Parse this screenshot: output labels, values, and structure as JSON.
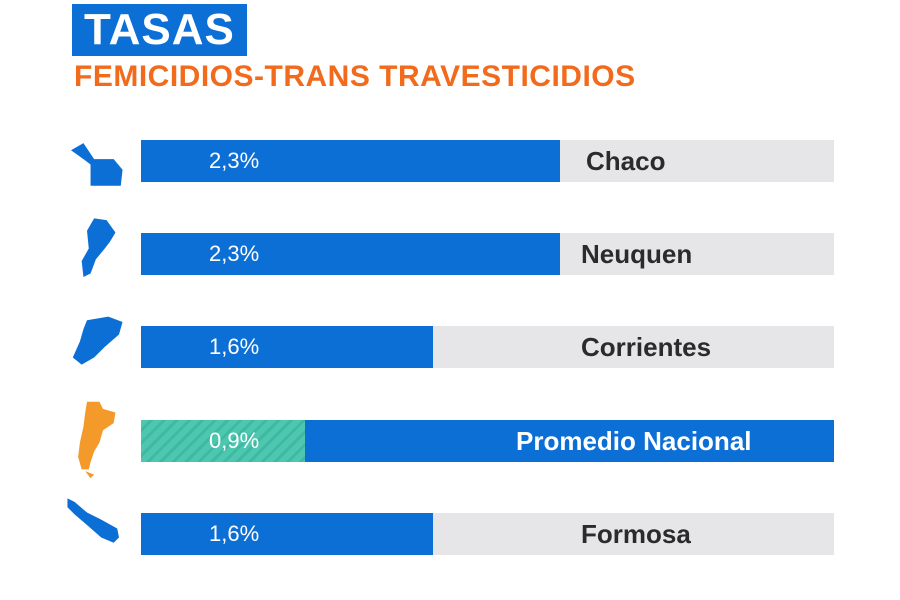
{
  "title": "TASAS",
  "subtitle": "FEMICIDIOS-TRANS TRAVESTICIDIOS",
  "colors": {
    "title_bg": "#0b6fd6",
    "subtitle": "#f26a1b",
    "bar": "#0b6fd6",
    "track": "#e6e6e8",
    "national_fill": "#4ec7b0",
    "national_map": "#f39a2b"
  },
  "chart_data": {
    "type": "bar",
    "orientation": "horizontal",
    "title": "TASAS",
    "subtitle": "FEMICIDIOS-TRANS TRAVESTICIDIOS",
    "xlim": [
      0,
      3.8
    ],
    "categories": [
      "Chaco",
      "Neuquen",
      "Corrientes",
      "Promedio Nacional",
      "Formosa"
    ],
    "values": [
      2.3,
      2.3,
      1.6,
      0.9,
      1.6
    ],
    "value_labels": [
      "2,3%",
      "2,3%",
      "1,6%",
      "0,9%",
      "1,6%"
    ],
    "map_icons": [
      "chaco-map-icon",
      "neuquen-map-icon",
      "corrientes-map-icon",
      "argentina-map-icon",
      "formosa-map-icon"
    ]
  }
}
